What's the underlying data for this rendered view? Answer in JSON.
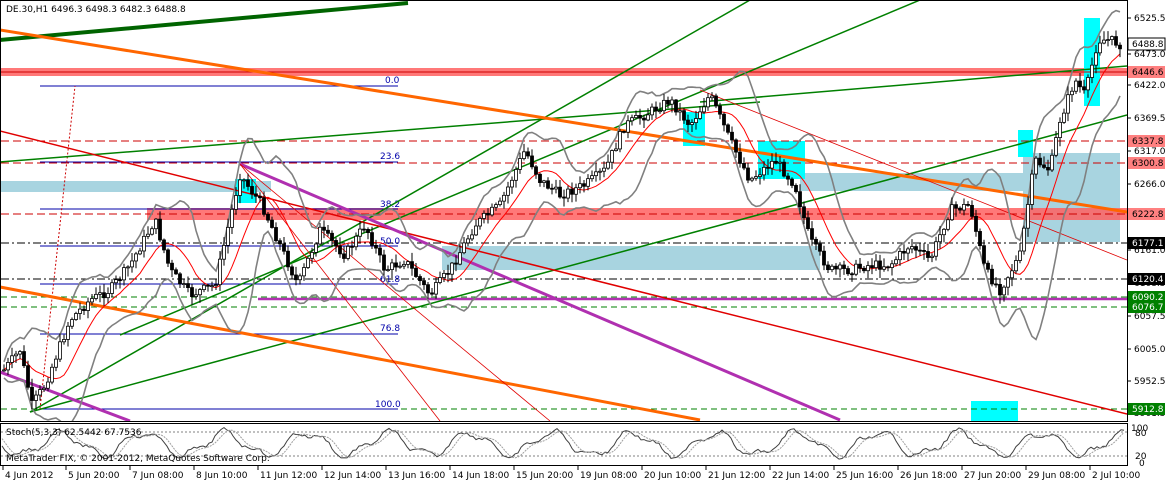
{
  "header": {
    "symbol_info": "DE.30,H1  6496.3 6498.3 6482.3 6488.8"
  },
  "footer": {
    "copyright": "MetaTrader FIX, © 2001-2012, MetaQuotes Software Corp."
  },
  "stoch": {
    "label": "Stoch(5,3,3) 62.5442 67.7536",
    "levels": [
      "100",
      "80",
      "20",
      "0"
    ]
  },
  "price_axis": [
    "6525.5",
    "6473.0",
    "6422.0",
    "6369.5",
    "6317.0",
    "6266.0",
    "6213.5",
    "6161.0",
    "6108.5",
    "6057.5",
    "6005.0",
    "5952.5",
    "5901.5"
  ],
  "price_tags": [
    {
      "value": "6488.8",
      "color": "#ffffff",
      "text_color": "#000000"
    },
    {
      "value": "6446.6",
      "color": "#ff8080",
      "text_color": "#000000"
    },
    {
      "value": "6337.8",
      "color": "#ff8080",
      "text_color": "#000000"
    },
    {
      "value": "6300.8",
      "color": "#ff8080",
      "text_color": "#000000"
    },
    {
      "value": "6222.8",
      "color": "#ff8080",
      "text_color": "#000000"
    },
    {
      "value": "6177.1",
      "color": "#000000",
      "text_color": "#ffffff"
    },
    {
      "value": "6120.4",
      "color": "#000000",
      "text_color": "#ffffff"
    },
    {
      "value": "6090.2",
      "color": "#008000",
      "text_color": "#ffffff"
    },
    {
      "value": "6076.7",
      "color": "#008000",
      "text_color": "#ffffff"
    },
    {
      "value": "5912.8",
      "color": "#008000",
      "text_color": "#ffffff"
    }
  ],
  "time_axis": [
    "4 Jun 2012",
    "5 Jun 20:00",
    "7 Jun 08:00",
    "8 Jun 10:00",
    "11 Jun 12:00",
    "12 Jun 14:00",
    "13 Jun 16:00",
    "14 Jun 18:00",
    "15 Jun 20:00",
    "19 Jun 08:00",
    "20 Jun 10:00",
    "21 Jun 12:00",
    "22 Jun 14:00",
    "25 Jun 16:00",
    "26 Jun 18:00",
    "27 Jun 20:00",
    "29 Jun 08:00",
    "2 Jul 10:00"
  ],
  "fib_levels": [
    "0.0",
    "23.6",
    "38.2",
    "50.0",
    "61.8",
    "76.8",
    "100.0"
  ],
  "colors": {
    "candle": "#000000",
    "bollinger": "#808080",
    "ma": "#ff0000",
    "trend_green": "#008000",
    "trend_orange": "#ff6600",
    "trend_red": "#e00000",
    "trend_magenta": "#b030b0",
    "zone_red": "#ff6060",
    "zone_blue": "#a8d4e0",
    "zone_cyan": "#00ffff"
  }
}
